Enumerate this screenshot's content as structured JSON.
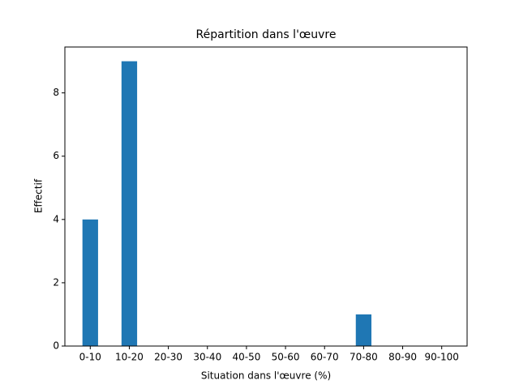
{
  "chart_data": {
    "type": "bar",
    "title": "Répartition dans l'œuvre",
    "x_label": "Situation dans l'œuvre (%)",
    "y_label": "Effectif",
    "categories": [
      "0-10",
      "10-20",
      "20-30",
      "30-40",
      "40-50",
      "50-60",
      "60-70",
      "70-80",
      "80-90",
      "90-100"
    ],
    "values": [
      4,
      9,
      0,
      0,
      0,
      0,
      0,
      1,
      0,
      0
    ],
    "color": "#1f77b4",
    "ylim": [
      0,
      9.45
    ],
    "yticks": [
      0,
      2,
      4,
      6,
      8
    ],
    "grid": false
  }
}
